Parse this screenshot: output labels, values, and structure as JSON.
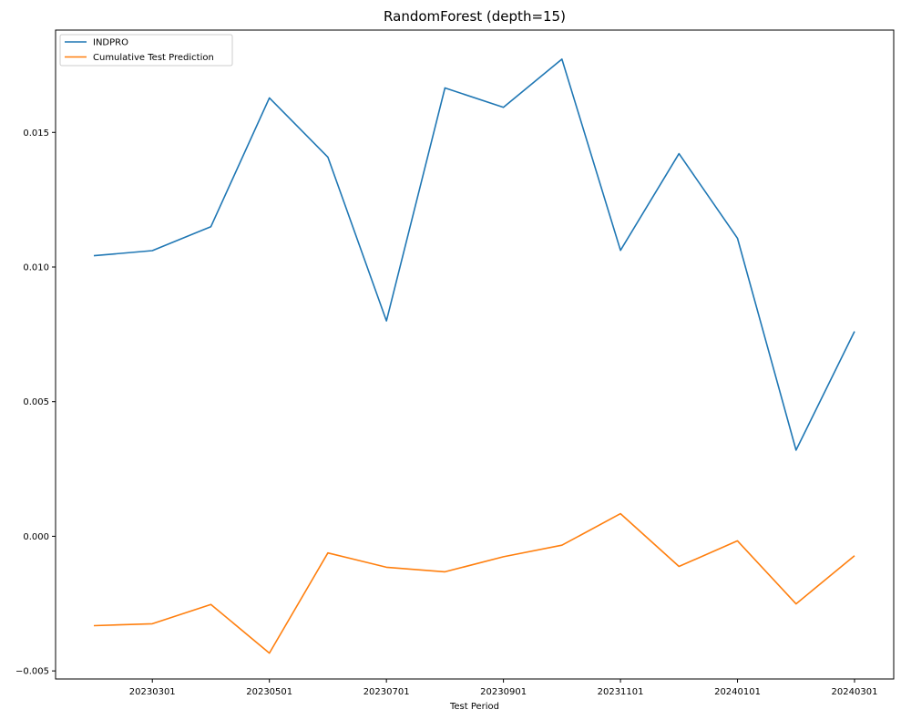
{
  "chart_data": {
    "type": "line",
    "title": "RandomForest (depth=15)",
    "xlabel": "Test Period",
    "ylabel": "",
    "x": [
      "20230201",
      "20230301",
      "20230401",
      "20230501",
      "20230601",
      "20230701",
      "20230801",
      "20230901",
      "20231001",
      "20231101",
      "20231201",
      "20240101",
      "20240201",
      "20240301"
    ],
    "x_tick_labels": [
      "20230301",
      "20230501",
      "20230701",
      "20230901",
      "20231101",
      "20240101",
      "20240301"
    ],
    "y_ticks": [
      -0.005,
      0.0,
      0.005,
      0.01,
      0.015
    ],
    "y_tick_labels": [
      "−0.005",
      "0.000",
      "0.005",
      "0.010",
      "0.015"
    ],
    "ylim": [
      -0.0053,
      0.0188
    ],
    "grid": false,
    "legend_position": "top-left",
    "series": [
      {
        "name": "INDPRO",
        "color": "#1f77b4",
        "values": [
          0.01042,
          0.01061,
          0.0115,
          0.01628,
          0.01408,
          0.008,
          0.01665,
          0.01593,
          0.01772,
          0.01062,
          0.01421,
          0.01107,
          0.0032,
          0.00761
        ]
      },
      {
        "name": "Cumulative Test Prediction",
        "color": "#ff7f0e",
        "values": [
          -0.00332,
          -0.00325,
          -0.00253,
          -0.00434,
          -0.00062,
          -0.00115,
          -0.00132,
          -0.00076,
          -0.00033,
          0.00084,
          -0.00112,
          -0.00017,
          -0.00251,
          -0.00072
        ]
      }
    ]
  }
}
